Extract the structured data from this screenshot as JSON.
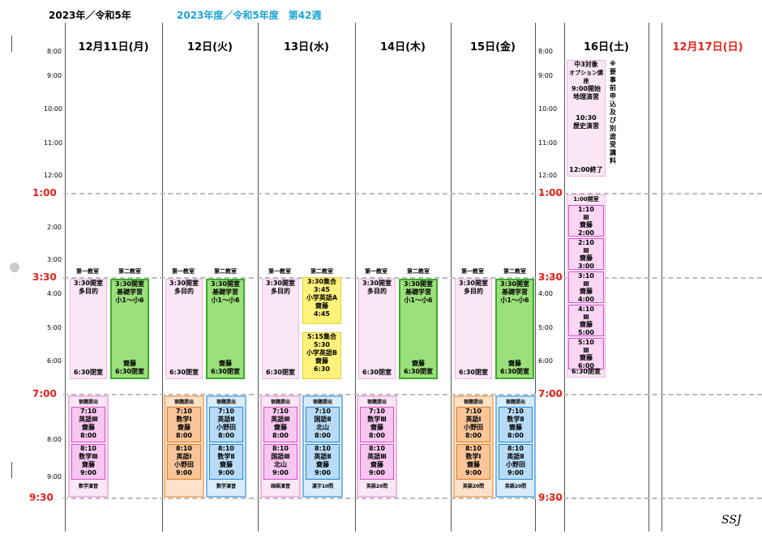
{
  "header": {
    "year": "2023年／令和5年",
    "week": "2023年度／令和5年度　第42週"
  },
  "days": [
    "12月11日(月)",
    "12日(火)",
    "13日(水)",
    "14日(木)",
    "15日(金)",
    "16日(土)",
    "12月17日(日)"
  ],
  "times_left": [
    "8:00",
    "9:00",
    "10:00",
    "11:00",
    "12:00",
    "2:00",
    "3:00",
    "4:00",
    "5:00",
    "6:00",
    "8:00",
    "9:00"
  ],
  "times_mid": [
    "8:00",
    "9:00",
    "10:00",
    "11:00",
    "12:00",
    "4:00",
    "5:00",
    "6:00"
  ],
  "red_times": {
    "t1": "1:00",
    "t330": "3:30",
    "t7": "7:00",
    "t930": "9:30"
  },
  "rooms": {
    "r1": "第一教室",
    "r2": "第二教室"
  },
  "weekday": {
    "pink_top": "3:30開室",
    "pink_mid": "多目的",
    "pink_bot": "6:30閉室",
    "green_top": "3:30開室",
    "green_mid1": "基礎学習",
    "green_mid2": "小1～小6",
    "green_name": "齋藤",
    "green_bot": "6:30閉室"
  },
  "wed_yellow": {
    "a1": "3:30集合",
    "a2": "3:45",
    "a3": "小学英語A",
    "a4": "齋藤",
    "a5": "4:45",
    "b1": "5:15集合",
    "b2": "5:30",
    "b3": "小学英語B",
    "b4": "齋藤",
    "b5": "6:30"
  },
  "evening_header": "宿題提出",
  "evening": {
    "mon1": {
      "top": [
        "7:10",
        "英語Ⅲ",
        "齋藤",
        "8:00"
      ],
      "bot": [
        "8:10",
        "数学Ⅲ",
        "齋藤",
        "9:00"
      ],
      "note": "数学演習"
    },
    "tue1": {
      "top": [
        "7:10",
        "数学Ⅰ",
        "齋藤",
        "8:00"
      ],
      "bot": [
        "8:10",
        "英語Ⅰ",
        "小野田",
        "9:00"
      ]
    },
    "tue2": {
      "top": [
        "7:10",
        "英語Ⅱ",
        "小野田",
        "8:00"
      ],
      "bot": [
        "8:10",
        "数学Ⅱ",
        "齋藤",
        "9:00"
      ],
      "note": "数学演習"
    },
    "wed1": {
      "top": [
        "7:10",
        "英語Ⅲ",
        "齋藤",
        "8:00"
      ],
      "bot": [
        "8:10",
        "国語Ⅲ",
        "北山",
        "9:00"
      ],
      "note": "国語演習"
    },
    "wed2": {
      "top": [
        "7:10",
        "国語Ⅱ",
        "北山",
        "8:00"
      ],
      "bot": [
        "8:10",
        "英語Ⅱ",
        "齋藤",
        "9:00"
      ],
      "note": "漢字10問"
    },
    "thu1": {
      "top": [
        "7:10",
        "数学Ⅲ",
        "齋藤",
        "8:00"
      ],
      "bot": [
        "8:10",
        "英語Ⅲ",
        "齋藤",
        "9:00"
      ],
      "note": "英語20問"
    },
    "fri1": {
      "top": [
        "7:10",
        "英語Ⅰ",
        "小野田",
        "8:00"
      ],
      "bot": [
        "8:10",
        "数学Ⅰ",
        "齋藤",
        "9:00"
      ],
      "note": "英語20問"
    },
    "fri2": {
      "top": [
        "7:10",
        "数学Ⅱ",
        "齋藤",
        "8:00"
      ],
      "bot": [
        "8:10",
        "英語Ⅱ",
        "小野田",
        "9:00"
      ],
      "note": "英語20問"
    }
  },
  "saturday": {
    "option": [
      "中3対象",
      "オプション講座",
      "9:00開始",
      "地理演習",
      "10:30",
      "歴史演習",
      "12:00終了"
    ],
    "side_note": "※要事前申込及び別途受講料",
    "open": "1:00開室",
    "lessons": [
      [
        "1:10",
        "Ⅲ",
        "齋藤",
        "2:00"
      ],
      [
        "2:10",
        "Ⅲ",
        "齋藤",
        "3:00"
      ],
      [
        "3:10",
        "Ⅲ",
        "齋藤",
        "4:00"
      ],
      [
        "4:10",
        "Ⅲ",
        "齋藤",
        "5:00"
      ],
      [
        "5:10",
        "Ⅲ",
        "齋藤",
        "6:00"
      ]
    ],
    "close": "6:30閉室"
  },
  "signature": "SSJ"
}
